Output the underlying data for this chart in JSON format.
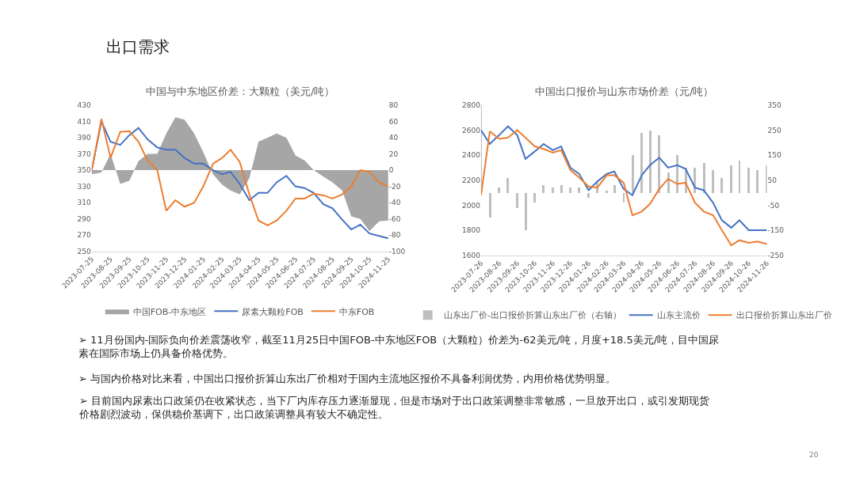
{
  "chart_data": [
    {
      "type": "line",
      "title": "中国与中东地区价差：大颗粒（美元/吨）",
      "annotations": [
        "出口需求",
        "➢ 11月份国内-国际负向价差震荡收窄，截至11月25日中国FOB-中东地区FOB（大颗粒）价差为-62美元/吨，月度+18.5美元/吨，目中国尿素在国际市场上仍具备价格优势。",
        "➢ 与国内价格对比来看，中国出口报价折算山东出厂价相对于国内主流地区报价不具备利润优势，内用价格优势明显。",
        "➢ 目前国内尿素出口政策仍在收紧状态，当下厂内库存压力逐渐显现，但是市场对于出口政策调整非常敏感，一旦放开出口，或引发期现货价格剧烈波动，保供稳价基调下，出口政策调整具有较大不确定性。",
        "20"
      ],
      "x": [
        "2023-07-25",
        "2023-08-10",
        "2023-08-25",
        "2023-09-10",
        "2023-09-25",
        "2023-10-10",
        "2023-10-25",
        "2023-11-10",
        "2023-11-25",
        "2023-12-10",
        "2023-12-25",
        "2024-01-10",
        "2024-01-25",
        "2024-02-10",
        "2024-02-25",
        "2024-03-10",
        "2024-03-25",
        "2024-04-10",
        "2024-04-25",
        "2024-05-10",
        "2024-05-25",
        "2024-06-10",
        "2024-06-25",
        "2024-07-10",
        "2024-07-25",
        "2024-08-10",
        "2024-08-25",
        "2024-09-10",
        "2024-09-25",
        "2024-10-10",
        "2024-10-25",
        "2024-11-10",
        "2024-11-25"
      ],
      "series": [
        {
          "name": "中国FOB-中东地区",
          "type": "area",
          "axis": "y2",
          "color": "#a6a6a6",
          "values": [
            -5,
            -3,
            20,
            -17,
            -13,
            11,
            20,
            20,
            45,
            65,
            62,
            45,
            22,
            -5,
            -18,
            -25,
            -30,
            -10,
            35,
            40,
            45,
            40,
            18,
            12,
            0,
            -8,
            -15,
            -25,
            -57,
            -60,
            -75,
            -63,
            -62
          ]
        },
        {
          "name": "尿素大颗粒FOB",
          "color": "#4472c4",
          "values": [
            350,
            410,
            385,
            381,
            393,
            402,
            388,
            378,
            375,
            375,
            365,
            358,
            358,
            350,
            345,
            348,
            333,
            313,
            322,
            322,
            335,
            343,
            330,
            328,
            322,
            308,
            303,
            289,
            277,
            283,
            272,
            269,
            266
          ]
        },
        {
          "name": "中东FOB",
          "color": "#ed7d31",
          "values": [
            350,
            413,
            365,
            397,
            398,
            385,
            362,
            350,
            300,
            313,
            305,
            310,
            330,
            358,
            365,
            375,
            360,
            320,
            288,
            282,
            288,
            300,
            315,
            315,
            321,
            319,
            315,
            320,
            330,
            350,
            348,
            335,
            330
          ]
        }
      ],
      "xlim": [
        "2023-07-25",
        "2024-11-25"
      ],
      "xticks": [
        "2023-07-25",
        "2023-08-25",
        "2023-09-25",
        "2023-10-25",
        "2023-11-25",
        "2023-12-25",
        "2024-01-25",
        "2024-02-25",
        "2024-03-25",
        "2024-04-25",
        "2024-05-25",
        "2024-06-25",
        "2024-07-25",
        "2024-08-25",
        "2024-09-25",
        "2024-10-25",
        "2024-11-25"
      ],
      "ylim": [
        250,
        430
      ],
      "yticks": [
        250,
        270,
        290,
        310,
        330,
        350,
        370,
        390,
        410,
        430
      ],
      "y2lim": [
        -100,
        80
      ],
      "y2ticks": [
        -100,
        -80,
        -60,
        -40,
        -20,
        0,
        20,
        40,
        60,
        80
      ],
      "legend": "bottom"
    },
    {
      "type": "line",
      "title": "中国出口报价与山东市场价差（元/吨）",
      "x": [
        "2023-07-26",
        "2023-08-10",
        "2023-08-26",
        "2023-09-10",
        "2023-09-26",
        "2023-10-10",
        "2023-10-26",
        "2023-11-10",
        "2023-11-26",
        "2023-12-10",
        "2023-12-26",
        "2024-01-10",
        "2024-01-26",
        "2024-02-10",
        "2024-02-26",
        "2024-03-10",
        "2024-03-26",
        "2024-04-10",
        "2024-04-26",
        "2024-05-10",
        "2024-05-26",
        "2024-06-10",
        "2024-06-26",
        "2024-07-10",
        "2024-07-26",
        "2024-08-10",
        "2024-08-26",
        "2024-09-10",
        "2024-09-26",
        "2024-10-10",
        "2024-10-26",
        "2024-11-10",
        "2024-11-26"
      ],
      "series": [
        {
          "name": "山东出厂价-出口报价折算山东出厂价（右轴）",
          "type": "bar",
          "axis": "y2",
          "color": "#bfbfbf",
          "values": [
            350,
            -100,
            20,
            60,
            -60,
            -150,
            -40,
            30,
            20,
            30,
            20,
            20,
            -20,
            40,
            10,
            30,
            -40,
            150,
            240,
            250,
            230,
            80,
            150,
            100,
            100,
            120,
            90,
            60,
            110,
            130,
            100,
            90,
            110
          ]
        },
        {
          "name": "山东主流价",
          "color": "#4472c4",
          "values": [
            2600,
            2490,
            2560,
            2630,
            2560,
            2370,
            2430,
            2490,
            2440,
            2470,
            2300,
            2250,
            2120,
            2190,
            2250,
            2270,
            2130,
            2080,
            2240,
            2320,
            2380,
            2300,
            2320,
            2290,
            2140,
            2120,
            2020,
            1880,
            1820,
            1880,
            1800,
            1800,
            1800
          ]
        },
        {
          "name": "出口报价折算山东出厂价",
          "color": "#ed7d31",
          "values": [
            2080,
            2590,
            2530,
            2540,
            2600,
            2540,
            2470,
            2450,
            2420,
            2440,
            2280,
            2220,
            2150,
            2140,
            2240,
            2240,
            2180,
            1920,
            1950,
            2010,
            2130,
            2210,
            2170,
            2180,
            2020,
            1950,
            1920,
            1800,
            1680,
            1720,
            1700,
            1710,
            1690
          ]
        }
      ],
      "xlim": [
        "2023-07-26",
        "2024-11-26"
      ],
      "xticks": [
        "2023-07-26",
        "2023-08-26",
        "2023-09-26",
        "2023-10-26",
        "2023-11-26",
        "2023-12-26",
        "2024-01-26",
        "2024-02-26",
        "2024-03-26",
        "2024-04-26",
        "2024-05-26",
        "2024-06-26",
        "2024-07-26",
        "2024-08-26",
        "2024-09-26",
        "2024-10-26",
        "2024-11-26"
      ],
      "ylim": [
        1600,
        2800
      ],
      "yticks": [
        1600,
        1800,
        2000,
        2200,
        2400,
        2600,
        2800
      ],
      "y2lim": [
        -250,
        350
      ],
      "y2ticks": [
        -250,
        -150,
        -50,
        50,
        150,
        250,
        350
      ],
      "legend": "bottom"
    }
  ]
}
